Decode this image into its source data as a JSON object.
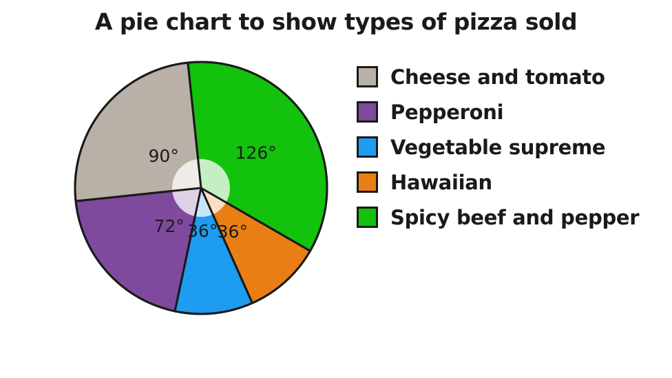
{
  "chart_data": {
    "type": "pie",
    "title": "A pie chart to show types of pizza sold",
    "unit": "degrees",
    "slices": [
      {
        "name": "Spicy beef and pepper",
        "value": 126,
        "label": "126°",
        "color": "#12c20c",
        "inner_color": "#c6eec4"
      },
      {
        "name": "Hawaiian",
        "value": 36,
        "label": "36°",
        "color": "#e97f14",
        "inner_color": "#f9dfc4"
      },
      {
        "name": "Vegetable supreme",
        "value": 36,
        "label": "36°",
        "color": "#1e9cef",
        "inner_color": "#c6e6fb"
      },
      {
        "name": "Pepperoni",
        "value": 72,
        "label": "72°",
        "color": "#7f4a9e",
        "inner_color": "#dfd2e7"
      },
      {
        "name": "Cheese and tomato",
        "value": 90,
        "label": "90°",
        "color": "#b9b1a7",
        "inner_color": "#eeebe9"
      }
    ],
    "legend": {
      "placement": "right",
      "items": [
        {
          "label": "Cheese and tomato",
          "color": "#b9b1a7"
        },
        {
          "label": "Pepperoni",
          "color": "#7f4a9e"
        },
        {
          "label": "Vegetable supreme",
          "color": "#1e9cef"
        },
        {
          "label": "Hawaiian",
          "color": "#e97f14"
        },
        {
          "label": "Spicy beef and pepper",
          "color": "#12c20c"
        }
      ]
    }
  }
}
